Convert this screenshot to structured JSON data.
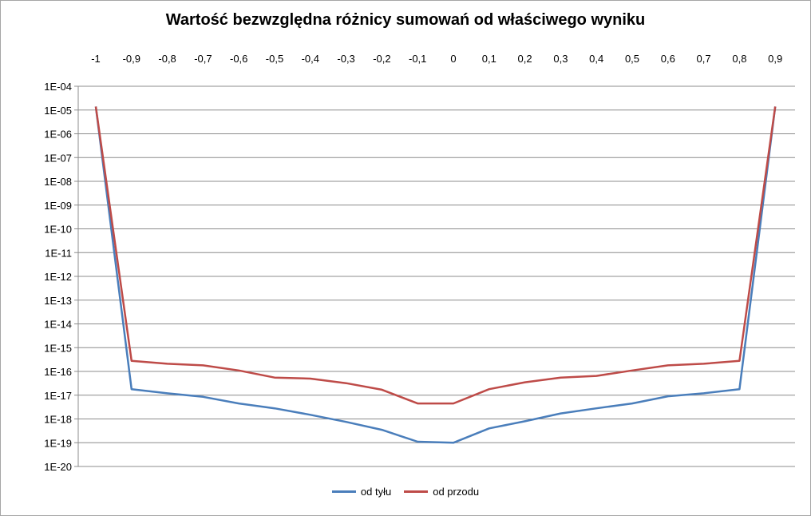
{
  "chart_data": {
    "type": "line",
    "title": "Wartość bezwzględna różnicy sumowań od właściwego wyniku",
    "xlabel": "",
    "ylabel": "",
    "x_scale": "category",
    "y_scale": "log",
    "categories": [
      "-1",
      "-0,9",
      "-0,8",
      "-0,7",
      "-0,6",
      "-0,5",
      "-0,4",
      "-0,3",
      "-0,2",
      "-0,1",
      "0",
      "0,1",
      "0,2",
      "0,3",
      "0,4",
      "0,5",
      "0,6",
      "0,7",
      "0,8",
      "0,9"
    ],
    "y_ticks": [
      "1E-04",
      "1E-05",
      "1E-06",
      "1E-07",
      "1E-08",
      "1E-09",
      "1E-10",
      "1E-11",
      "1E-12",
      "1E-13",
      "1E-14",
      "1E-15",
      "1E-16",
      "1E-17",
      "1E-18",
      "1E-19",
      "1E-20"
    ],
    "ylim": [
      1e-20,
      0.0001
    ],
    "grid": true,
    "legend_position": "bottom",
    "x_axis_position": "top",
    "series": [
      {
        "name": "od tyłu",
        "color": "#4a7ebb",
        "values": [
          1.4e-05,
          1.8e-17,
          1.2e-17,
          8.5e-18,
          4.5e-18,
          2.8e-18,
          1.5e-18,
          7.5e-19,
          3.5e-19,
          1.1e-19,
          1e-19,
          4e-19,
          8e-19,
          1.7e-18,
          2.8e-18,
          4.5e-18,
          9e-18,
          1.2e-17,
          1.8e-17,
          1.4e-05
        ]
      },
      {
        "name": "od przodu",
        "color": "#be4b48",
        "values": [
          1.4e-05,
          2.8e-16,
          2.1e-16,
          1.8e-16,
          1.1e-16,
          5.5e-17,
          5e-17,
          3.2e-17,
          1.7e-17,
          4.5e-18,
          4.5e-18,
          1.8e-17,
          3.5e-17,
          5.5e-17,
          6.5e-17,
          1.1e-16,
          1.8e-16,
          2.1e-16,
          2.8e-16,
          1.4e-05
        ]
      }
    ]
  }
}
